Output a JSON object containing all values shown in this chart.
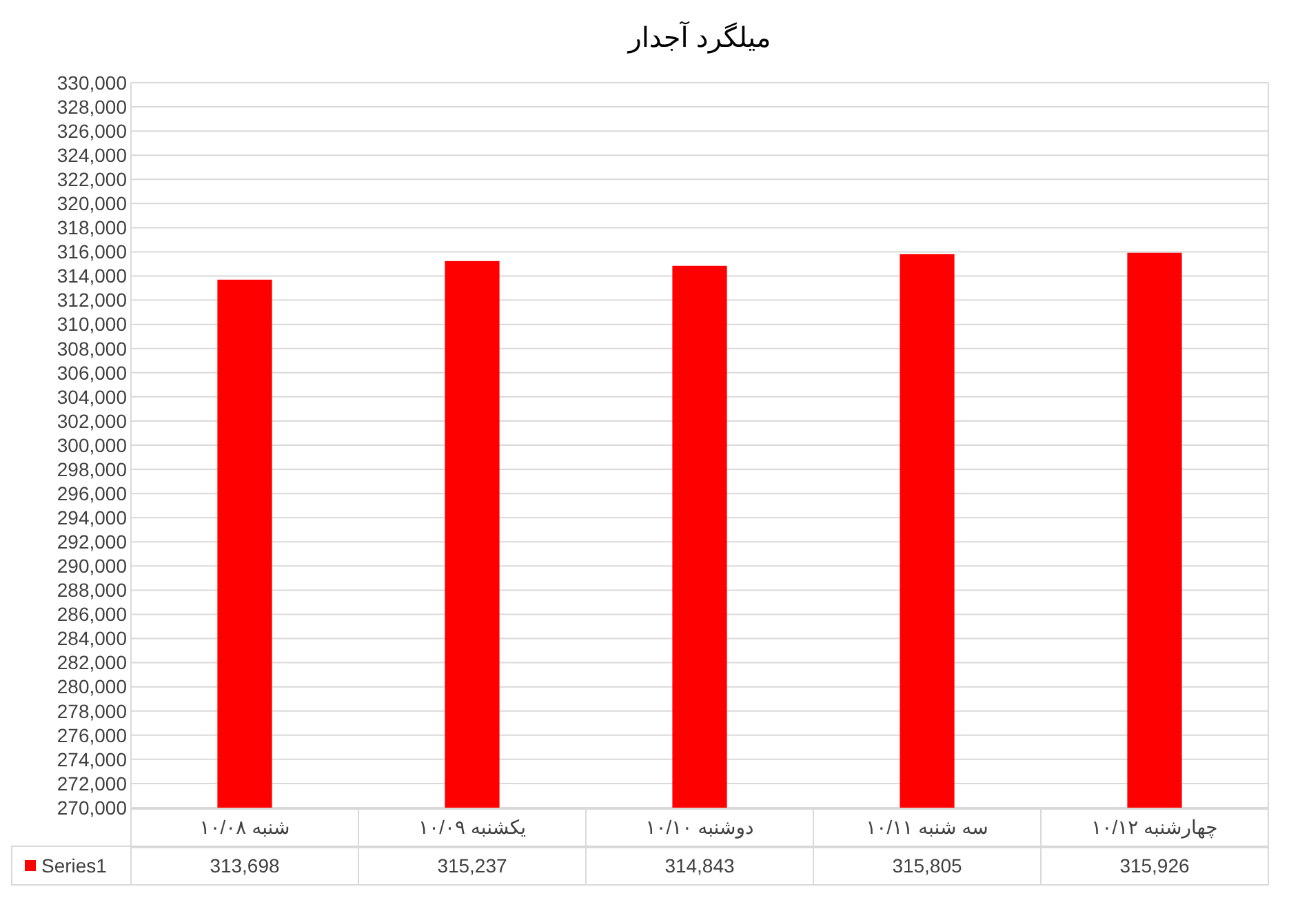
{
  "chart_data": {
    "type": "bar",
    "title": "میلگرد آجدار",
    "categories": [
      "شنبه ۱۰/۰۸",
      "یکشنبه ۱۰/۰۹",
      "دوشنبه ۱۰/۱۰",
      "سه شنبه ۱۰/۱۱",
      "چهارشنبه ۱۰/۱۲"
    ],
    "series": [
      {
        "name": "Series1",
        "color": "#ff0000",
        "values": [
          313698,
          315237,
          314843,
          315805,
          315926
        ],
        "value_labels": [
          "313,698",
          "315,237",
          "314,843",
          "315,805",
          "315,926"
        ]
      }
    ],
    "ylim": [
      270000,
      330000
    ],
    "yticks": [
      {
        "value": 270000,
        "label": "270,000"
      },
      {
        "value": 272000,
        "label": "272,000"
      },
      {
        "value": 274000,
        "label": "274,000"
      },
      {
        "value": 276000,
        "label": "276,000"
      },
      {
        "value": 278000,
        "label": "278,000"
      },
      {
        "value": 280000,
        "label": "280,000"
      },
      {
        "value": 282000,
        "label": "282,000"
      },
      {
        "value": 284000,
        "label": "284,000"
      },
      {
        "value": 286000,
        "label": "286,000"
      },
      {
        "value": 288000,
        "label": "288,000"
      },
      {
        "value": 290000,
        "label": "290,000"
      },
      {
        "value": 292000,
        "label": "292,000"
      },
      {
        "value": 294000,
        "label": "294,000"
      },
      {
        "value": 296000,
        "label": "296,000"
      },
      {
        "value": 298000,
        "label": "298,000"
      },
      {
        "value": 300000,
        "label": "300,000"
      },
      {
        "value": 302000,
        "label": "302,000"
      },
      {
        "value": 304000,
        "label": "304,000"
      },
      {
        "value": 306000,
        "label": "306,000"
      },
      {
        "value": 308000,
        "label": "308,000"
      },
      {
        "value": 310000,
        "label": "310,000"
      },
      {
        "value": 312000,
        "label": "312,000"
      },
      {
        "value": 314000,
        "label": "314,000"
      },
      {
        "value": 316000,
        "label": "316,000"
      },
      {
        "value": 318000,
        "label": "318,000"
      },
      {
        "value": 320000,
        "label": "320,000"
      },
      {
        "value": 322000,
        "label": "322,000"
      },
      {
        "value": 324000,
        "label": "324,000"
      },
      {
        "value": 326000,
        "label": "326,000"
      },
      {
        "value": 328000,
        "label": "328,000"
      },
      {
        "value": 330000,
        "label": "330,000"
      }
    ],
    "grid": "y",
    "legend": "bottom"
  }
}
